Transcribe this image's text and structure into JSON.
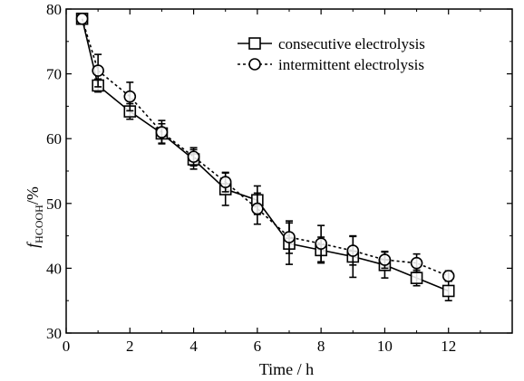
{
  "chart_data": {
    "type": "line",
    "title": "",
    "xlabel": "Time / h",
    "ylabel_main": "f",
    "ylabel_sub": "HCOOH",
    "ylabel_unit": "/%",
    "xlim": [
      0,
      14
    ],
    "ylim": [
      30,
      80
    ],
    "xticks": [
      0,
      2,
      4,
      6,
      8,
      10,
      12
    ],
    "yticks": [
      30,
      40,
      50,
      60,
      70,
      80
    ],
    "grid": false,
    "legend_position": "top-right",
    "series": [
      {
        "name": "consecutive electrolysis",
        "marker": "square",
        "line_style": "solid",
        "x": [
          0.5,
          1,
          2,
          3,
          4,
          5,
          6,
          7,
          8,
          9,
          10,
          11,
          12
        ],
        "y": [
          78.5,
          68.2,
          64.2,
          60.8,
          56.8,
          52.2,
          50.5,
          43.8,
          42.8,
          41.8,
          40.5,
          38.5,
          36.5
        ],
        "err": [
          0,
          1.0,
          1.2,
          1.5,
          1.5,
          2.5,
          2.2,
          3.2,
          2.0,
          3.2,
          2.0,
          1.2,
          1.5
        ]
      },
      {
        "name": "intermittent electrolysis",
        "marker": "circle",
        "line_style": "dashed",
        "x": [
          0.5,
          1,
          2,
          3,
          4,
          5,
          6,
          7,
          8,
          9,
          10,
          11,
          12
        ],
        "y": [
          78.5,
          70.5,
          66.5,
          61.0,
          57.2,
          53.3,
          49.2,
          44.8,
          43.8,
          42.7,
          41.3,
          40.8,
          38.8
        ],
        "err": [
          0,
          2.5,
          2.2,
          1.8,
          1.4,
          1.5,
          2.4,
          2.5,
          2.8,
          2.2,
          1.3,
          1.4,
          0.8
        ]
      }
    ]
  }
}
